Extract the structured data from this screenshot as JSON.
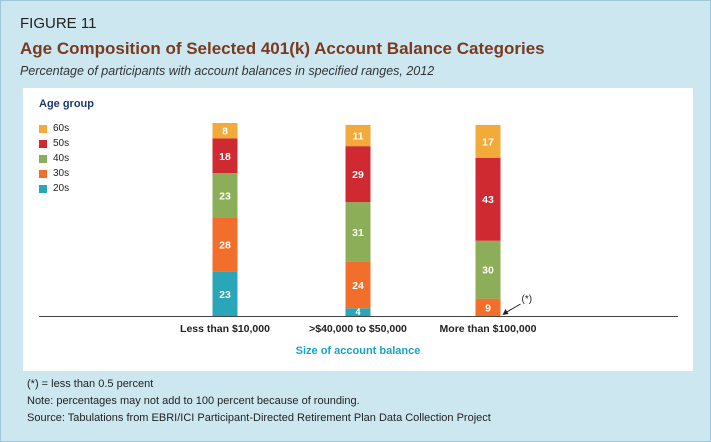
{
  "figure": {
    "label": "FIGURE 11",
    "title": "Age Composition of Selected 401(k) Account Balance Categories",
    "subtitle": "Percentage of participants with account balances in specified ranges, 2012"
  },
  "footnotes": [
    "(*) = less than 0.5 percent",
    "Note: percentages may not add to 100 percent because of rounding.",
    "Source: Tabulations from EBRI/ICI Participant-Directed Retirement Plan Data Collection Project"
  ],
  "chart_data": {
    "type": "bar",
    "stacked": true,
    "categories": [
      "Less than $10,000",
      ">$40,000 to $50,000",
      "More than $100,000"
    ],
    "xlabel": "Size of account balance",
    "ylabel": "",
    "ylim": [
      0,
      100
    ],
    "legend_title": "Age group",
    "legend_position": "top-left",
    "grid": false,
    "series": [
      {
        "name": "20s",
        "color": "#2aa6b8",
        "values": [
          23,
          4,
          0
        ],
        "labels": [
          "23",
          "4",
          ""
        ]
      },
      {
        "name": "30s",
        "color": "#f26f2b",
        "values": [
          28,
          24,
          9
        ],
        "labels": [
          "28",
          "24",
          "9"
        ]
      },
      {
        "name": "40s",
        "color": "#8cae58",
        "values": [
          23,
          31,
          30
        ],
        "labels": [
          "23",
          "31",
          "30"
        ]
      },
      {
        "name": "50s",
        "color": "#cf2a31",
        "values": [
          18,
          29,
          43
        ],
        "labels": [
          "18",
          "29",
          "43"
        ]
      },
      {
        "name": "60s",
        "color": "#f2aa3a",
        "values": [
          8,
          11,
          17
        ],
        "labels": [
          "8",
          "11",
          "17"
        ]
      }
    ],
    "annotation": {
      "text": "(*)",
      "category": "More than $100,000",
      "series": "20s"
    }
  }
}
